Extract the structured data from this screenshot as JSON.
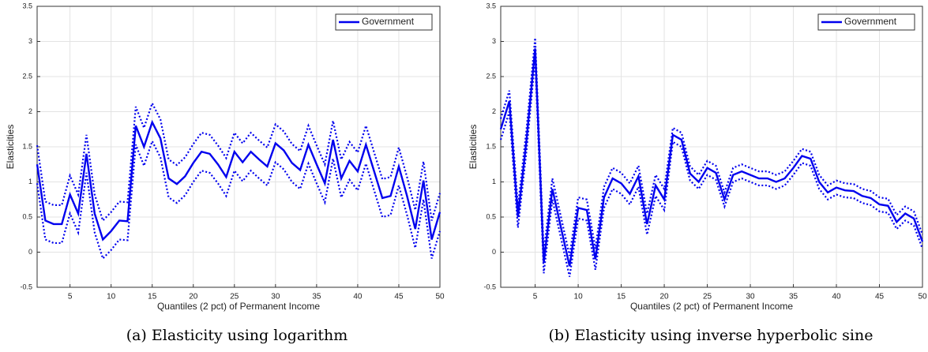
{
  "chart_data": [
    {
      "type": "line",
      "xlabel": "Quantiles (2 pct) of  Permanent Income",
      "ylabel": "Elasticities",
      "caption": "(a) Elasticity using logarithm",
      "x": [
        1,
        2,
        3,
        4,
        5,
        6,
        7,
        8,
        9,
        10,
        11,
        12,
        13,
        14,
        15,
        16,
        17,
        18,
        19,
        20,
        21,
        22,
        23,
        24,
        25,
        26,
        27,
        28,
        29,
        30,
        31,
        32,
        33,
        34,
        35,
        36,
        37,
        38,
        39,
        40,
        41,
        42,
        43,
        44,
        45,
        46,
        47,
        48,
        49,
        50
      ],
      "xlim": [
        1,
        50
      ],
      "xticks": [
        5,
        10,
        15,
        20,
        25,
        30,
        35,
        40,
        45,
        50
      ],
      "ylim": [
        -0.5,
        3.5
      ],
      "yticks": [
        -0.5,
        0,
        0.5,
        1,
        1.5,
        2,
        2.5,
        3,
        3.5
      ],
      "grid": true,
      "legend": "upper right",
      "series": [
        {
          "name": "Government",
          "color": "#0000ee",
          "style": "solid",
          "values": [
            1.25,
            0.45,
            0.4,
            0.4,
            0.82,
            0.55,
            1.4,
            0.55,
            0.18,
            0.3,
            0.45,
            0.44,
            1.8,
            1.5,
            1.85,
            1.62,
            1.05,
            0.97,
            1.08,
            1.27,
            1.43,
            1.4,
            1.25,
            1.07,
            1.43,
            1.28,
            1.43,
            1.32,
            1.22,
            1.55,
            1.45,
            1.27,
            1.17,
            1.53,
            1.25,
            0.98,
            1.6,
            1.05,
            1.3,
            1.15,
            1.53,
            1.15,
            0.77,
            0.8,
            1.22,
            0.8,
            0.33,
            1.02,
            0.18,
            0.57
          ]
        },
        {
          "color": "#0000ee",
          "style": "dotted",
          "values": [
            1.52,
            0.72,
            0.67,
            0.67,
            1.09,
            0.82,
            1.67,
            0.82,
            0.45,
            0.57,
            0.72,
            0.71,
            2.07,
            1.77,
            2.12,
            1.89,
            1.32,
            1.24,
            1.35,
            1.54,
            1.7,
            1.67,
            1.52,
            1.34,
            1.7,
            1.55,
            1.7,
            1.59,
            1.49,
            1.82,
            1.72,
            1.54,
            1.44,
            1.8,
            1.52,
            1.25,
            1.87,
            1.32,
            1.57,
            1.42,
            1.8,
            1.42,
            1.04,
            1.07,
            1.49,
            1.07,
            0.6,
            1.29,
            0.45,
            0.84
          ]
        },
        {
          "color": "#0000ee",
          "style": "dotted",
          "values": [
            0.98,
            0.18,
            0.13,
            0.13,
            0.55,
            0.28,
            1.13,
            0.28,
            -0.09,
            0.03,
            0.18,
            0.17,
            1.53,
            1.23,
            1.58,
            1.35,
            0.78,
            0.7,
            0.81,
            1.0,
            1.16,
            1.13,
            0.98,
            0.8,
            1.16,
            1.01,
            1.16,
            1.05,
            0.95,
            1.28,
            1.18,
            1.0,
            0.9,
            1.26,
            0.98,
            0.71,
            1.33,
            0.78,
            1.03,
            0.88,
            1.26,
            0.88,
            0.5,
            0.53,
            0.95,
            0.53,
            0.06,
            0.75,
            -0.09,
            0.3
          ]
        }
      ]
    },
    {
      "type": "line",
      "xlabel": "Quantiles (2 pct) of  Permanent Income",
      "ylabel": "Elasticities",
      "caption": "(b) Elasticity using inverse hyperbolic sine",
      "x": [
        1,
        2,
        3,
        4,
        5,
        6,
        7,
        8,
        9,
        10,
        11,
        12,
        13,
        14,
        15,
        16,
        17,
        18,
        19,
        20,
        21,
        22,
        23,
        24,
        25,
        26,
        27,
        28,
        29,
        30,
        31,
        32,
        33,
        34,
        35,
        36,
        37,
        38,
        39,
        40,
        41,
        42,
        43,
        44,
        45,
        46,
        47,
        48,
        49,
        50
      ],
      "xlim": [
        1,
        50
      ],
      "xticks": [
        5,
        10,
        15,
        20,
        25,
        30,
        35,
        40,
        45,
        50
      ],
      "ylim": [
        -0.5,
        3.5
      ],
      "yticks": [
        -0.5,
        0,
        0.5,
        1,
        1.5,
        2,
        2.5,
        3,
        3.5
      ],
      "grid": true,
      "legend": "upper right",
      "series": [
        {
          "name": "Government",
          "color": "#0000ee",
          "style": "solid",
          "values": [
            1.75,
            2.15,
            0.5,
            1.6,
            2.9,
            -0.15,
            0.9,
            0.35,
            -0.2,
            0.63,
            0.6,
            -0.1,
            0.78,
            1.05,
            0.98,
            0.83,
            1.08,
            0.4,
            0.95,
            0.75,
            1.67,
            1.6,
            1.12,
            1.0,
            1.2,
            1.13,
            0.75,
            1.1,
            1.15,
            1.1,
            1.05,
            1.05,
            1.0,
            1.05,
            1.2,
            1.37,
            1.33,
            1.0,
            0.85,
            0.92,
            0.88,
            0.87,
            0.8,
            0.77,
            0.68,
            0.66,
            0.43,
            0.55,
            0.48,
            0.15
          ]
        },
        {
          "color": "#0000ee",
          "style": "dotted",
          "values": [
            1.9,
            2.3,
            0.65,
            1.75,
            3.05,
            0.0,
            1.05,
            0.5,
            -0.05,
            0.78,
            0.75,
            0.05,
            0.93,
            1.2,
            1.13,
            0.98,
            1.23,
            0.55,
            1.1,
            0.9,
            1.77,
            1.7,
            1.22,
            1.1,
            1.3,
            1.23,
            0.85,
            1.2,
            1.25,
            1.2,
            1.15,
            1.15,
            1.1,
            1.15,
            1.3,
            1.47,
            1.43,
            1.1,
            0.95,
            1.02,
            0.98,
            0.97,
            0.9,
            0.87,
            0.78,
            0.76,
            0.53,
            0.65,
            0.58,
            0.25
          ]
        },
        {
          "color": "#0000ee",
          "style": "dotted",
          "values": [
            1.6,
            2.0,
            0.35,
            1.45,
            2.75,
            -0.3,
            0.75,
            0.2,
            -0.35,
            0.48,
            0.45,
            -0.25,
            0.63,
            0.9,
            0.83,
            0.68,
            0.93,
            0.25,
            0.8,
            0.6,
            1.57,
            1.5,
            1.02,
            0.9,
            1.1,
            1.03,
            0.65,
            1.0,
            1.05,
            1.0,
            0.95,
            0.95,
            0.9,
            0.95,
            1.1,
            1.27,
            1.23,
            0.9,
            0.75,
            0.82,
            0.78,
            0.77,
            0.7,
            0.67,
            0.58,
            0.56,
            0.33,
            0.45,
            0.38,
            0.05
          ]
        }
      ]
    }
  ]
}
